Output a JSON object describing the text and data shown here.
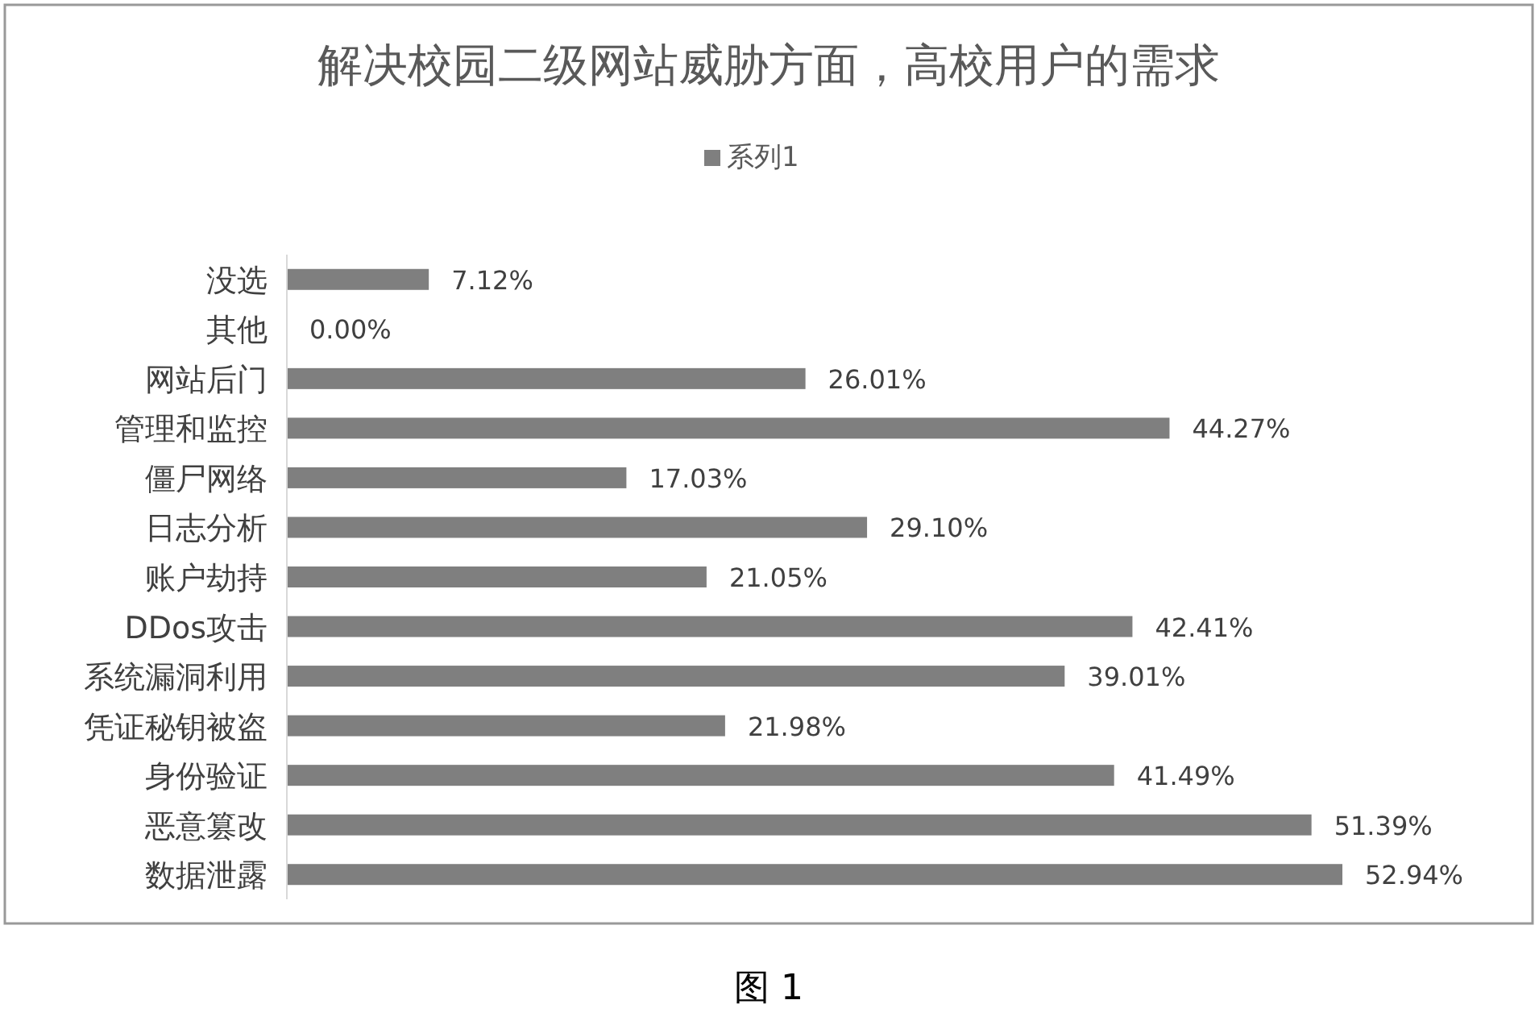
{
  "chart_data": {
    "type": "bar",
    "orientation": "horizontal",
    "title": "解决校园二级网站威胁方面，高校用户的需求",
    "legend": "top",
    "categories": [
      "没选",
      "其他",
      "网站后门",
      "管理和监控",
      "僵尸网络",
      "日志分析",
      "账户劫持",
      "DDos攻击",
      "系统漏洞利用",
      "凭证秘钥被盗",
      "身份验证",
      "恶意篡改",
      "数据泄露"
    ],
    "series": [
      {
        "name": "系列1",
        "color": "#7f7f7f",
        "values": [
          7.12,
          0,
          26.01,
          44.27,
          17.03,
          29.1,
          21.05,
          42.41,
          39.01,
          21.98,
          41.49,
          51.39,
          52.94
        ],
        "value_labels": [
          "7.12%",
          "0.00%",
          "26.01%",
          "44.27%",
          "17.03%",
          "29.10%",
          "21.05%",
          "42.41%",
          "39.01%",
          "21.98%",
          "41.49%",
          "51.39%",
          "52.94%"
        ]
      }
    ],
    "annotations": [
      "图 1"
    ]
  }
}
